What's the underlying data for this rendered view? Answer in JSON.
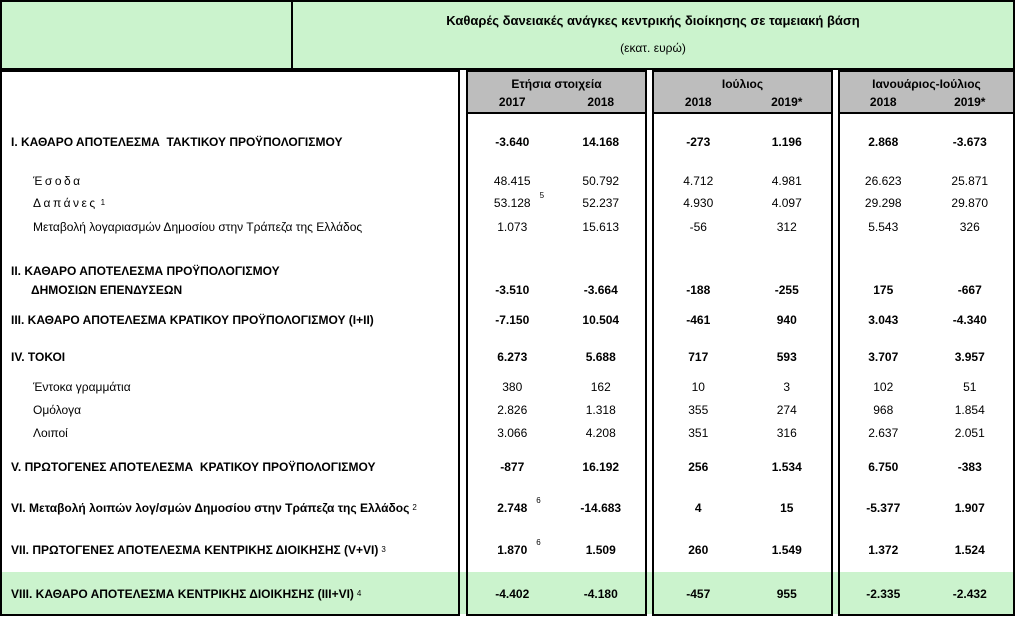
{
  "title": {
    "line1": "Καθαρές δανειακές ανάγκες κεντρικής διοίκησης σε ταμειακή βάση",
    "line2": "(εκατ. ευρώ)"
  },
  "colors": {
    "highlight_green": "#cbf3cd",
    "header_gray": "#bdbdbd",
    "border": "#000000"
  },
  "table": {
    "header": {
      "groups": [
        {
          "label": "Ετήσια στοιχεία",
          "years": [
            "2017",
            "2018"
          ]
        },
        {
          "label": "Ιούλιος",
          "years": [
            "2018",
            "2019*"
          ]
        },
        {
          "label": "Ιανουάριος-Ιούλιος",
          "years": [
            "2018",
            "2019*"
          ]
        }
      ]
    },
    "rows": [
      {
        "label": "I. ΚΑΘΑΡΟ ΑΠΟΤΕΛΕΣΜΑ  ΤΑΚΤΙΚΟΥ ΠΡΟΫΠΟΛΟΓΙΣΜΟΥ",
        "values": [
          "-3.640",
          "14.168",
          "-273",
          "1.196",
          "2.868",
          "-3.673"
        ]
      },
      {
        "label": "Έσοδα",
        "values": [
          "48.415",
          "50.792",
          "4.712",
          "4.981",
          "26.623",
          "25.871"
        ]
      },
      {
        "label": "Δαπάνες",
        "label_sup": "1",
        "value_sups": {
          "0": "5"
        },
        "values": [
          "53.128",
          "52.237",
          "4.930",
          "4.097",
          "29.298",
          "29.870"
        ]
      },
      {
        "label": "Μεταβολή λογαριασμών Δημοσίου στην Τράπεζα της Ελλάδος",
        "values": [
          "1.073",
          "15.613",
          "-56",
          "312",
          "5.543",
          "326"
        ]
      },
      {
        "label": "II. ΚΑΘΑΡΟ ΑΠΟΤΕΛΕΣΜΑ ΠΡΟΫΠΟΛΟΓΙΣΜΟΥ",
        "values": []
      },
      {
        "label": "ΔΗΜΟΣΙΩΝ ΕΠΕΝΔΥΣΕΩΝ",
        "values": [
          "-3.510",
          "-3.664",
          "-188",
          "-255",
          "175",
          "-667"
        ]
      },
      {
        "label": "III. ΚΑΘΑΡΟ ΑΠΟΤΕΛΕΣΜΑ ΚΡΑΤΙΚΟΥ ΠΡΟΫΠΟΛΟΓΙΣΜΟΥ (I+II)",
        "values": [
          "-7.150",
          "10.504",
          "-461",
          "940",
          "3.043",
          "-4.340"
        ]
      },
      {
        "label": "IV. ΤΟΚΟΙ",
        "values": [
          "6.273",
          "5.688",
          "717",
          "593",
          "3.707",
          "3.957"
        ]
      },
      {
        "label": "Έντοκα γραμμάτια",
        "values": [
          "380",
          "162",
          "10",
          "3",
          "102",
          "51"
        ]
      },
      {
        "label": "Ομόλογα",
        "values": [
          "2.826",
          "1.318",
          "355",
          "274",
          "968",
          "1.854"
        ]
      },
      {
        "label": "Λοιποί",
        "values": [
          "3.066",
          "4.208",
          "351",
          "316",
          "2.637",
          "2.051"
        ]
      },
      {
        "label": "V. ΠΡΩΤΟΓΕΝΕΣ ΑΠΟΤΕΛΕΣΜΑ  ΚΡΑΤΙΚΟΥ ΠΡΟΫΠΟΛΟΓΙΣΜΟΥ",
        "values": [
          "-877",
          "16.192",
          "256",
          "1.534",
          "6.750",
          "-383"
        ]
      },
      {
        "label": "VI. Μεταβολή λοιπών λογ/σμών Δημοσίου στην Τράπεζα της Ελλάδος",
        "label_sup": "2",
        "value_sups": {
          "0": "6"
        },
        "values": [
          "2.748",
          "-14.683",
          "4",
          "15",
          "-5.377",
          "1.907"
        ]
      },
      {
        "label": "VII. ΠΡΩΤΟΓΕΝΕΣ ΑΠΟΤΕΛΕΣΜΑ ΚΕΝΤΡΙΚΗΣ ΔΙΟΙΚΗΣΗΣ (V+VI)",
        "label_sup": "3",
        "value_sups": {
          "0": "6"
        },
        "values": [
          "1.870",
          "1.509",
          "260",
          "1.549",
          "1.372",
          "1.524"
        ]
      },
      {
        "label": "VIII. ΚΑΘΑΡΟ ΑΠΟΤΕΛΕΣΜΑ ΚΕΝΤΡΙΚΗΣ ΔΙΟΙΚΗΣΗΣ (III+VI)",
        "label_sup": "4",
        "values": [
          "-4.402",
          "-4.180",
          "-457",
          "955",
          "-2.335",
          "-2.432"
        ]
      }
    ]
  }
}
